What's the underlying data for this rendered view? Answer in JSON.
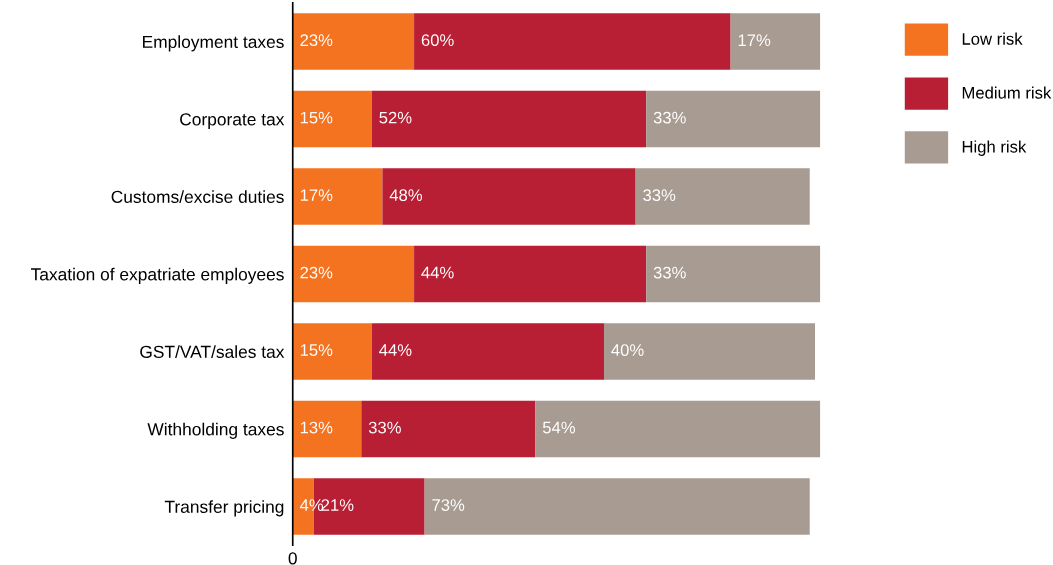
{
  "chart_data": {
    "type": "bar",
    "orientation": "horizontal",
    "stacked": true,
    "categories": [
      "Employment taxes",
      "Corporate tax",
      "Customs/excise duties",
      "Taxation of expatriate employees",
      "GST/VAT/sales tax",
      "Withholding taxes",
      "Transfer pricing"
    ],
    "series": [
      {
        "name": "Low risk",
        "color": "#f47321",
        "values": [
          23,
          15,
          17,
          23,
          15,
          13,
          4
        ],
        "value_labels": [
          "23%",
          "15%",
          "17%",
          "23%",
          "15%",
          "13%",
          "4%"
        ]
      },
      {
        "name": "Medium risk",
        "color": "#b91f34",
        "values": [
          60,
          52,
          48,
          44,
          44,
          33,
          21
        ],
        "value_labels": [
          "60%",
          "52%",
          "48%",
          "44%",
          "44%",
          "33%",
          "21%"
        ]
      },
      {
        "name": "High risk",
        "color": "#a89b91",
        "values": [
          17,
          33,
          33,
          33,
          40,
          54,
          73
        ],
        "value_labels": [
          "17%",
          "33%",
          "33%",
          "33%",
          "40%",
          "54%",
          "73%"
        ]
      }
    ],
    "annotations": [
      "0"
    ],
    "grid": false,
    "legend": "right"
  }
}
